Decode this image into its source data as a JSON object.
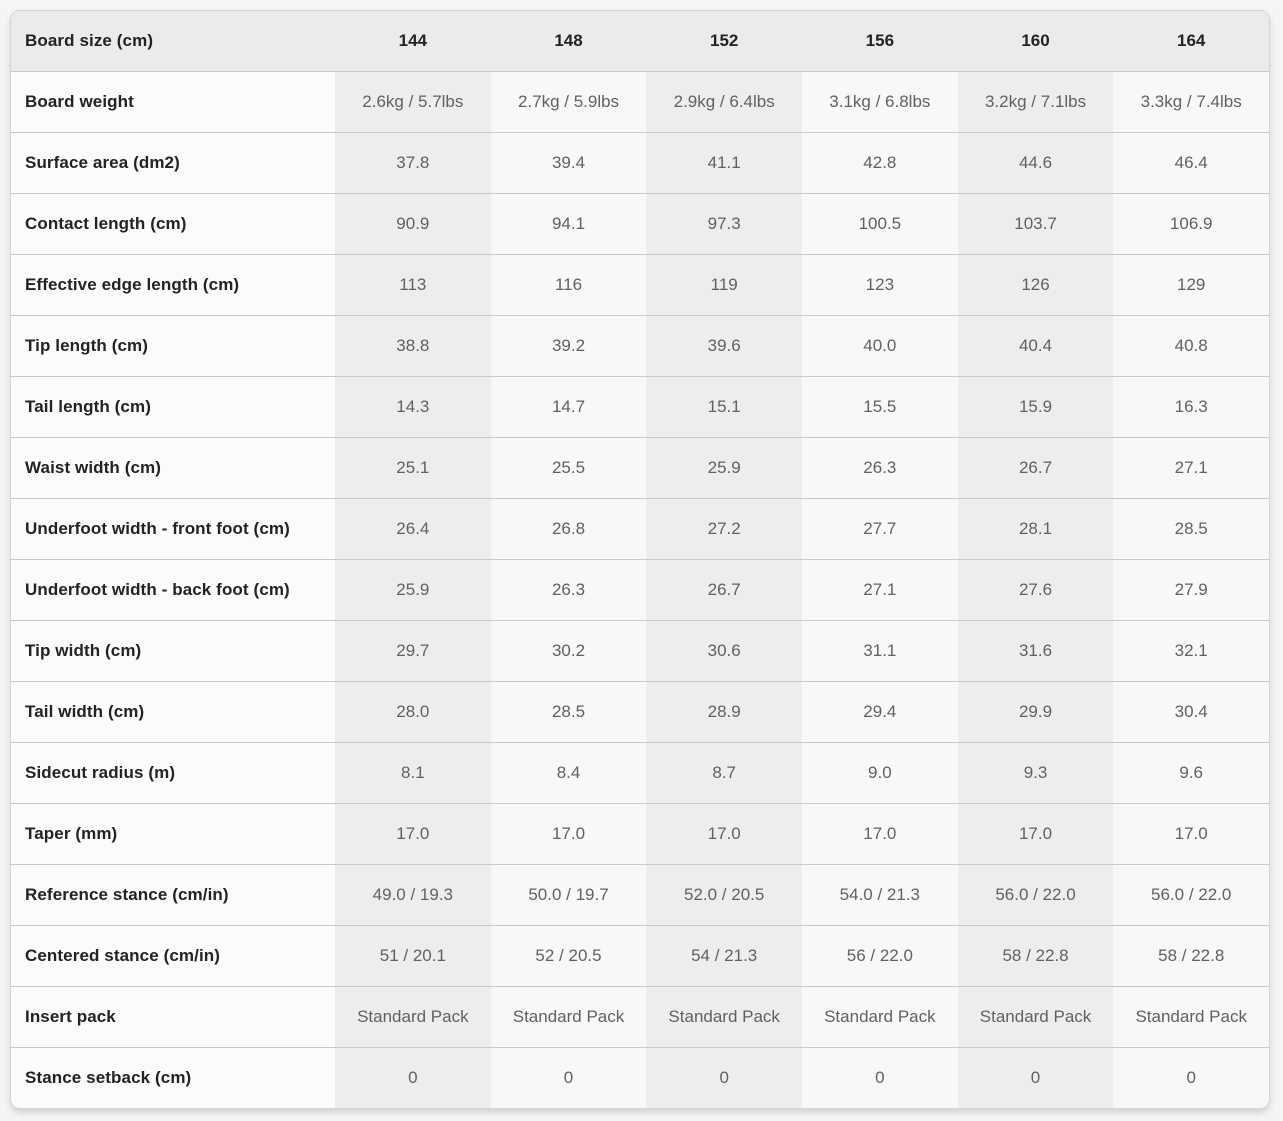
{
  "table": {
    "header": {
      "label": "Board size (cm)",
      "sizes": [
        "144",
        "148",
        "152",
        "156",
        "160",
        "164"
      ]
    },
    "rows": [
      {
        "label": "Board weight",
        "values": [
          "2.6kg / 5.7lbs",
          "2.7kg / 5.9lbs",
          "2.9kg / 6.4lbs",
          "3.1kg / 6.8lbs",
          "3.2kg / 7.1lbs",
          "3.3kg / 7.4lbs"
        ]
      },
      {
        "label": "Surface area (dm2)",
        "values": [
          "37.8",
          "39.4",
          "41.1",
          "42.8",
          "44.6",
          "46.4"
        ]
      },
      {
        "label": "Contact length (cm)",
        "values": [
          "90.9",
          "94.1",
          "97.3",
          "100.5",
          "103.7",
          "106.9"
        ]
      },
      {
        "label": "Effective edge length (cm)",
        "values": [
          "113",
          "116",
          "119",
          "123",
          "126",
          "129"
        ]
      },
      {
        "label": "Tip length (cm)",
        "values": [
          "38.8",
          "39.2",
          "39.6",
          "40.0",
          "40.4",
          "40.8"
        ]
      },
      {
        "label": "Tail length (cm)",
        "values": [
          "14.3",
          "14.7",
          "15.1",
          "15.5",
          "15.9",
          "16.3"
        ]
      },
      {
        "label": "Waist width (cm)",
        "values": [
          "25.1",
          "25.5",
          "25.9",
          "26.3",
          "26.7",
          "27.1"
        ]
      },
      {
        "label": "Underfoot width - front foot (cm)",
        "values": [
          "26.4",
          "26.8",
          "27.2",
          "27.7",
          "28.1",
          "28.5"
        ]
      },
      {
        "label": "Underfoot width - back foot (cm)",
        "values": [
          "25.9",
          "26.3",
          "26.7",
          "27.1",
          "27.6",
          "27.9"
        ]
      },
      {
        "label": "Tip width (cm)",
        "values": [
          "29.7",
          "30.2",
          "30.6",
          "31.1",
          "31.6",
          "32.1"
        ]
      },
      {
        "label": "Tail width (cm)",
        "values": [
          "28.0",
          "28.5",
          "28.9",
          "29.4",
          "29.9",
          "30.4"
        ]
      },
      {
        "label": "Sidecut radius (m)",
        "values": [
          "8.1",
          "8.4",
          "8.7",
          "9.0",
          "9.3",
          "9.6"
        ]
      },
      {
        "label": "Taper (mm)",
        "values": [
          "17.0",
          "17.0",
          "17.0",
          "17.0",
          "17.0",
          "17.0"
        ]
      },
      {
        "label": "Reference stance (cm/in)",
        "values": [
          "49.0 / 19.3",
          "50.0 / 19.7",
          "52.0 / 20.5",
          "54.0 / 21.3",
          "56.0 / 22.0",
          "56.0 / 22.0"
        ]
      },
      {
        "label": "Centered stance (cm/in)",
        "values": [
          "51 / 20.1",
          "52 / 20.5",
          "54 / 21.3",
          "56 / 22.0",
          "58 / 22.8",
          "58 / 22.8"
        ]
      },
      {
        "label": "Insert pack",
        "values": [
          "Standard Pack",
          "Standard Pack",
          "Standard Pack",
          "Standard Pack",
          "Standard Pack",
          "Standard Pack"
        ]
      },
      {
        "label": "Stance setback (cm)",
        "values": [
          "0",
          "0",
          "0",
          "0",
          "0",
          "0"
        ]
      }
    ]
  },
  "colors": {
    "page_bg": "#f5f5f5",
    "header_bg": "#ebebeb",
    "label_cell_bg": "#fbfbfb",
    "column_shade_dark": "#ededed",
    "column_shade_light": "#f8f8f8",
    "divider": "#c9c9c9",
    "label_text": "#232323",
    "value_text": "#616161"
  }
}
